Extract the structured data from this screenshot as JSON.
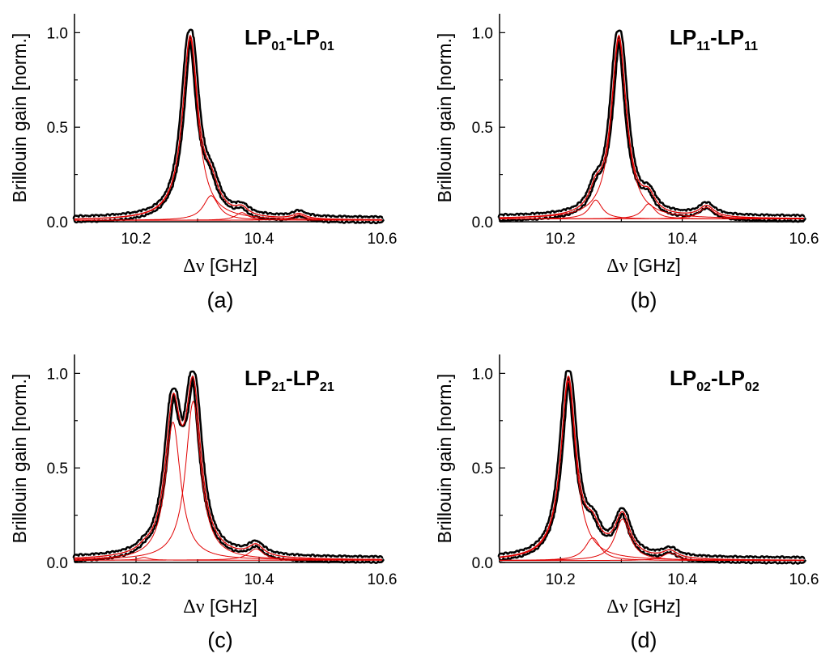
{
  "chart_data": [
    {
      "type": "line",
      "caption": "(a)",
      "title": {
        "prefix": "LP",
        "sub1": "01",
        "dash": "-",
        "sub2": "01"
      },
      "xlabel": {
        "symbol": "Δν",
        "text": " [GHz]"
      },
      "ylabel": "Brillouin gain [norm.]",
      "xlim": [
        10.1,
        10.6
      ],
      "ylim": [
        0,
        1.1
      ],
      "xticks": [
        10.2,
        10.4,
        10.6
      ],
      "xtick_labels": [
        "10.2",
        "10.4",
        "10.6"
      ],
      "yticks": [
        0,
        0.5,
        1.0
      ],
      "ytick_labels": [
        "0.0",
        "0.5",
        "1.0"
      ],
      "baseline": 0.008,
      "series": [
        {
          "name": "Measured (fitted sum)",
          "kind": "measured"
        },
        {
          "name": "Lorentzian 1",
          "kind": "component",
          "center": 10.288,
          "amplitude": 0.96,
          "fwhm": 0.03
        },
        {
          "name": "Lorentzian 2",
          "kind": "component",
          "center": 10.322,
          "amplitude": 0.13,
          "fwhm": 0.03
        },
        {
          "name": "Lorentzian 3",
          "kind": "component",
          "center": 10.372,
          "amplitude": 0.04,
          "fwhm": 0.025
        },
        {
          "name": "Lorentzian 4",
          "kind": "component",
          "center": 10.465,
          "amplitude": 0.028,
          "fwhm": 0.025
        }
      ]
    },
    {
      "type": "line",
      "caption": "(b)",
      "title": {
        "prefix": "LP",
        "sub1": "11",
        "dash": "-",
        "sub2": "11"
      },
      "xlabel": {
        "symbol": "Δν",
        "text": " [GHz]"
      },
      "ylabel": "Brillouin gain [norm.]",
      "xlim": [
        10.1,
        10.6
      ],
      "ylim": [
        0,
        1.1
      ],
      "xticks": [
        10.2,
        10.4,
        10.6
      ],
      "xtick_labels": [
        "10.2",
        "10.4",
        "10.6"
      ],
      "yticks": [
        0,
        0.5,
        1.0
      ],
      "ytick_labels": [
        "0.0",
        "0.5",
        "1.0"
      ],
      "baseline": 0.015,
      "series": [
        {
          "name": "Measured (fitted sum)",
          "kind": "measured"
        },
        {
          "name": "Lorentzian 1",
          "kind": "component",
          "center": 10.296,
          "amplitude": 0.95,
          "fwhm": 0.03
        },
        {
          "name": "Lorentzian 2",
          "kind": "component",
          "center": 10.258,
          "amplitude": 0.1,
          "fwhm": 0.025
        },
        {
          "name": "Lorentzian 3",
          "kind": "component",
          "center": 10.345,
          "amplitude": 0.08,
          "fwhm": 0.025
        },
        {
          "name": "Lorentzian 4",
          "kind": "component",
          "center": 10.44,
          "amplitude": 0.06,
          "fwhm": 0.03
        }
      ]
    },
    {
      "type": "line",
      "caption": "(c)",
      "title": {
        "prefix": "LP",
        "sub1": "21",
        "dash": "-",
        "sub2": "21"
      },
      "xlabel": {
        "symbol": "Δν",
        "text": " [GHz]"
      },
      "ylabel": "Brillouin gain [norm.]",
      "xlim": [
        10.1,
        10.6
      ],
      "ylim": [
        0,
        1.1
      ],
      "xticks": [
        10.2,
        10.4,
        10.6
      ],
      "xtick_labels": [
        "10.2",
        "10.4",
        "10.6"
      ],
      "yticks": [
        0,
        0.5,
        1.0
      ],
      "ytick_labels": [
        "0.0",
        "0.5",
        "1.0"
      ],
      "baseline": 0.012,
      "series": [
        {
          "name": "Measured (fitted sum)",
          "kind": "measured"
        },
        {
          "name": "Lorentzian 1",
          "kind": "component",
          "center": 10.26,
          "amplitude": 0.73,
          "fwhm": 0.03
        },
        {
          "name": "Lorentzian 2",
          "kind": "component",
          "center": 10.293,
          "amplitude": 0.84,
          "fwhm": 0.03
        },
        {
          "name": "Lorentzian 3",
          "kind": "component",
          "center": 10.213,
          "amplitude": 0.015,
          "fwhm": 0.02
        },
        {
          "name": "Lorentzian 4",
          "kind": "component",
          "center": 10.395,
          "amplitude": 0.06,
          "fwhm": 0.03
        }
      ]
    },
    {
      "type": "line",
      "caption": "(d)",
      "title": {
        "prefix": "LP",
        "sub1": "02",
        "dash": "-",
        "sub2": "02"
      },
      "xlabel": {
        "symbol": "Δν",
        "text": " [GHz]"
      },
      "ylabel": "Brillouin gain [norm.]",
      "xlim": [
        10.1,
        10.6
      ],
      "ylim": [
        0,
        1.1
      ],
      "xticks": [
        10.2,
        10.4,
        10.6
      ],
      "xtick_labels": [
        "10.2",
        "10.4",
        "10.6"
      ],
      "yticks": [
        0,
        0.5,
        1.0
      ],
      "ytick_labels": [
        "0.0",
        "0.5",
        "1.0"
      ],
      "baseline": 0.01,
      "series": [
        {
          "name": "Measured (fitted sum)",
          "kind": "measured"
        },
        {
          "name": "Lorentzian 1",
          "kind": "component",
          "center": 10.213,
          "amplitude": 0.95,
          "fwhm": 0.03
        },
        {
          "name": "Lorentzian 2",
          "kind": "component",
          "center": 10.253,
          "amplitude": 0.12,
          "fwhm": 0.03
        },
        {
          "name": "Lorentzian 3",
          "kind": "component",
          "center": 10.302,
          "amplitude": 0.22,
          "fwhm": 0.03
        },
        {
          "name": "Lorentzian 4",
          "kind": "component",
          "center": 10.38,
          "amplitude": 0.04,
          "fwhm": 0.03
        }
      ]
    }
  ]
}
